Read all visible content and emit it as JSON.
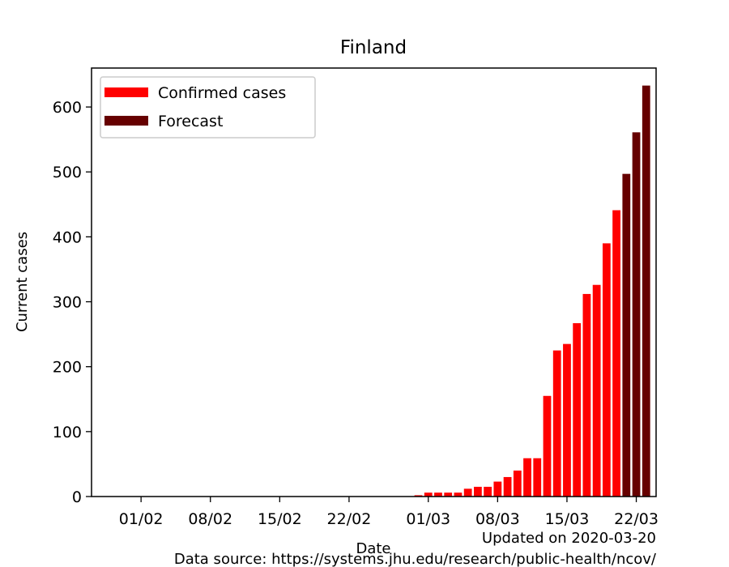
{
  "chart_data": {
    "type": "bar",
    "title": "Finland",
    "xlabel": "Date",
    "ylabel": "Current cases",
    "ylim": [
      0,
      660
    ],
    "yticks": [
      0,
      100,
      200,
      300,
      400,
      500,
      600
    ],
    "xlim": [
      "2020-01-27",
      "2020-03-24"
    ],
    "xticks": [
      {
        "date": "2020-02-01",
        "label": "01/02"
      },
      {
        "date": "2020-02-08",
        "label": "08/02"
      },
      {
        "date": "2020-02-15",
        "label": "15/02"
      },
      {
        "date": "2020-02-22",
        "label": "22/02"
      },
      {
        "date": "2020-03-01",
        "label": "01/03"
      },
      {
        "date": "2020-03-08",
        "label": "08/03"
      },
      {
        "date": "2020-03-15",
        "label": "15/03"
      },
      {
        "date": "2020-03-22",
        "label": "22/03"
      }
    ],
    "grid": false,
    "legend_position": "top-left",
    "series": [
      {
        "name": "Confirmed cases",
        "color": "#ff0000",
        "x": [
          "2020-02-29",
          "2020-03-01",
          "2020-03-02",
          "2020-03-03",
          "2020-03-04",
          "2020-03-05",
          "2020-03-06",
          "2020-03-07",
          "2020-03-08",
          "2020-03-09",
          "2020-03-10",
          "2020-03-11",
          "2020-03-12",
          "2020-03-13",
          "2020-03-14",
          "2020-03-15",
          "2020-03-16",
          "2020-03-17",
          "2020-03-18",
          "2020-03-19",
          "2020-03-20"
        ],
        "values": [
          2,
          6,
          6,
          6,
          6,
          12,
          15,
          15,
          23,
          30,
          40,
          59,
          59,
          155,
          225,
          235,
          267,
          312,
          326,
          390,
          441
        ]
      },
      {
        "name": "Forecast",
        "color": "#660000",
        "x": [
          "2020-03-21",
          "2020-03-22",
          "2020-03-23"
        ],
        "values": [
          497,
          561,
          633
        ]
      }
    ]
  },
  "footer": {
    "updated": "Updated on 2020-03-20",
    "source": "Data source: https://systems.jhu.edu/research/public-health/ncov/"
  }
}
